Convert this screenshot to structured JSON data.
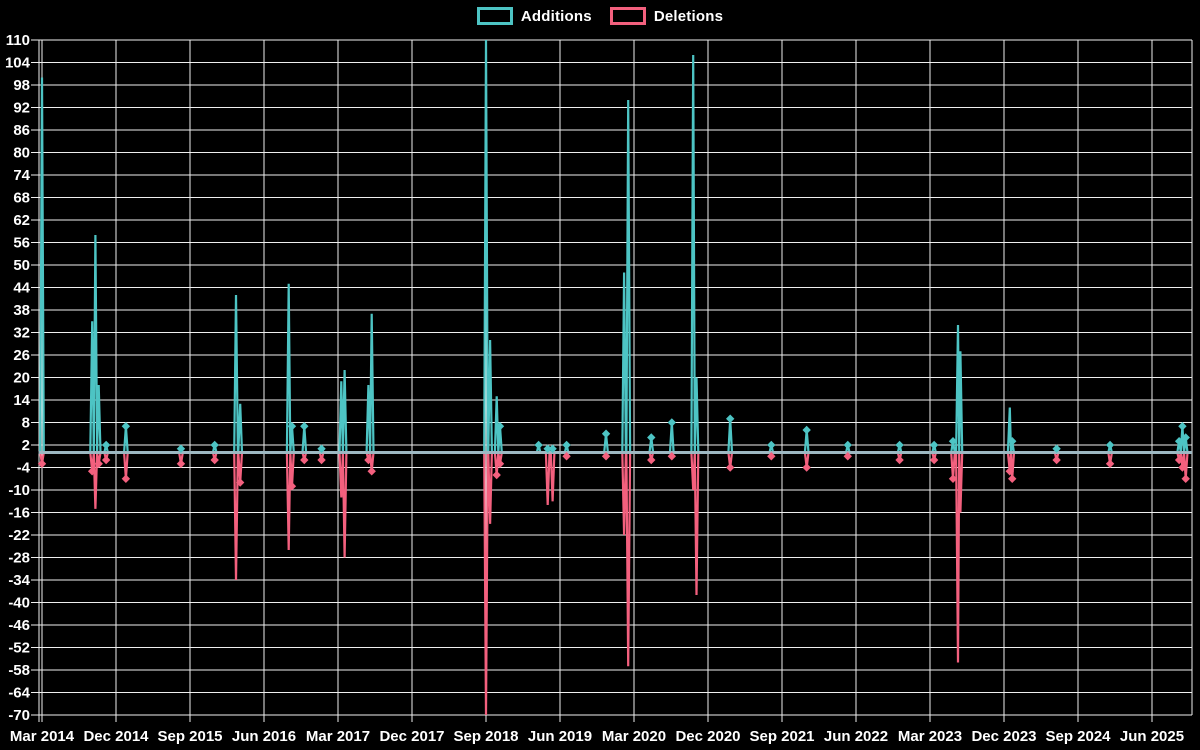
{
  "chart_data": {
    "type": "line",
    "title": "",
    "description": "Weekly additions and deletions spike chart (code frequency), black background",
    "legend": [
      {
        "label": "Additions",
        "color": "#4dc4c4"
      },
      {
        "label": "Deletions",
        "color": "#f3607e"
      }
    ],
    "legend_position": "top-center",
    "grid": true,
    "colors": {
      "background": "#000000",
      "gridline": "#efefef",
      "zero_baseline": "#9db8c2",
      "tick_text": "#ffffff",
      "additions": "#4dc4c4",
      "deletions": "#f3607e"
    },
    "y_axis": {
      "min": -70,
      "max": 110,
      "tick_step": 6,
      "tick_values": [
        110,
        104,
        98,
        92,
        86,
        80,
        74,
        68,
        62,
        56,
        50,
        44,
        38,
        32,
        26,
        20,
        14,
        8,
        2,
        -4,
        -10,
        -16,
        -22,
        -28,
        -34,
        -40,
        -46,
        -52,
        -58,
        -64,
        -70
      ]
    },
    "x_axis": {
      "tick_labels": [
        "Mar 2014",
        "Dec 2014",
        "Sep 2015",
        "Jun 2016",
        "Mar 2017",
        "Dec 2017",
        "Sep 2018",
        "Jun 2019",
        "Mar 2020",
        "Dec 2020",
        "Sep 2021",
        "Jun 2022",
        "Mar 2023",
        "Dec 2023",
        "Sep 2024",
        "Jun 2025"
      ],
      "tick_months": [
        0,
        9,
        18,
        27,
        36,
        45,
        54,
        63,
        72,
        81,
        90,
        99,
        108,
        117,
        126,
        135
      ],
      "months_visible": [
        -0.4,
        139.8
      ]
    },
    "baseline_value": 0,
    "events": [
      {
        "date": "2014-03",
        "m": 0.0,
        "additions": 100,
        "deletions": -3
      },
      {
        "date": "2014-09",
        "m": 6.1,
        "additions": 35,
        "deletions": -5
      },
      {
        "date": "2014-10",
        "m": 6.5,
        "additions": 58,
        "deletions": -15
      },
      {
        "date": "2014-10",
        "m": 6.9,
        "additions": 18,
        "deletions": -3
      },
      {
        "date": "2014-12",
        "m": 7.8,
        "additions": 2,
        "deletions": -2
      },
      {
        "date": "2015-01",
        "m": 10.2,
        "additions": 7,
        "deletions": -7
      },
      {
        "date": "2015-08",
        "m": 16.9,
        "additions": 1,
        "deletions": -3
      },
      {
        "date": "2015-12",
        "m": 21.0,
        "additions": 2,
        "deletions": -2
      },
      {
        "date": "2016-03",
        "m": 23.6,
        "additions": 42,
        "deletions": -34
      },
      {
        "date": "2016-03",
        "m": 24.1,
        "additions": 13,
        "deletions": -8
      },
      {
        "date": "2016-09",
        "m": 30.0,
        "additions": 45,
        "deletions": -26
      },
      {
        "date": "2016-09",
        "m": 30.4,
        "additions": 7,
        "deletions": -9
      },
      {
        "date": "2016-11",
        "m": 31.9,
        "additions": 7,
        "deletions": -2
      },
      {
        "date": "2017-01",
        "m": 34.0,
        "additions": 1,
        "deletions": -2
      },
      {
        "date": "2017-03",
        "m": 36.4,
        "additions": 19,
        "deletions": -12
      },
      {
        "date": "2017-03",
        "m": 36.8,
        "additions": 22,
        "deletions": -28
      },
      {
        "date": "2017-06",
        "m": 39.7,
        "additions": 18,
        "deletions": -2
      },
      {
        "date": "2017-07",
        "m": 40.1,
        "additions": 37,
        "deletions": -5
      },
      {
        "date": "2018-09",
        "m": 54.0,
        "additions": 110,
        "deletions": -70
      },
      {
        "date": "2018-10",
        "m": 54.5,
        "additions": 30,
        "deletions": -19
      },
      {
        "date": "2018-11",
        "m": 55.3,
        "additions": 15,
        "deletions": -6
      },
      {
        "date": "2018-11",
        "m": 55.7,
        "additions": 7,
        "deletions": -3
      },
      {
        "date": "2019-03",
        "m": 60.4,
        "additions": 2,
        "deletions": 0
      },
      {
        "date": "2019-04",
        "m": 61.5,
        "additions": 1,
        "deletions": -14
      },
      {
        "date": "2019-05",
        "m": 62.1,
        "additions": 1,
        "deletions": -13
      },
      {
        "date": "2019-07",
        "m": 63.8,
        "additions": 2,
        "deletions": -1
      },
      {
        "date": "2019-12",
        "m": 68.6,
        "additions": 5,
        "deletions": -1
      },
      {
        "date": "2020-02",
        "m": 70.8,
        "additions": 48,
        "deletions": -22
      },
      {
        "date": "2020-03",
        "m": 71.3,
        "additions": 94,
        "deletions": -57
      },
      {
        "date": "2020-05",
        "m": 74.1,
        "additions": 4,
        "deletions": -2
      },
      {
        "date": "2020-08",
        "m": 76.6,
        "additions": 8,
        "deletions": -1
      },
      {
        "date": "2020-10",
        "m": 79.2,
        "additions": 106,
        "deletions": -10
      },
      {
        "date": "2020-11",
        "m": 79.6,
        "additions": 20,
        "deletions": -38
      },
      {
        "date": "2021-02",
        "m": 83.7,
        "additions": 9,
        "deletions": -4
      },
      {
        "date": "2021-07",
        "m": 88.7,
        "additions": 2,
        "deletions": -1
      },
      {
        "date": "2021-12",
        "m": 93.0,
        "additions": 6,
        "deletions": -4
      },
      {
        "date": "2022-05",
        "m": 98.0,
        "additions": 2,
        "deletions": -1
      },
      {
        "date": "2022-11",
        "m": 104.3,
        "additions": 2,
        "deletions": -2
      },
      {
        "date": "2023-03",
        "m": 108.5,
        "additions": 2,
        "deletions": -2
      },
      {
        "date": "2023-05",
        "m": 110.8,
        "additions": 3,
        "deletions": -7
      },
      {
        "date": "2023-06",
        "m": 111.4,
        "additions": 34,
        "deletions": -56
      },
      {
        "date": "2023-06",
        "m": 111.7,
        "additions": 27,
        "deletions": -16
      },
      {
        "date": "2023-12",
        "m": 117.7,
        "additions": 12,
        "deletions": -5
      },
      {
        "date": "2023-12",
        "m": 118.0,
        "additions": 3,
        "deletions": -7
      },
      {
        "date": "2024-06",
        "m": 123.4,
        "additions": 1,
        "deletions": -2
      },
      {
        "date": "2024-12",
        "m": 129.9,
        "additions": 2,
        "deletions": -3
      },
      {
        "date": "2025-08",
        "m": 138.3,
        "additions": 3,
        "deletions": -2
      },
      {
        "date": "2025-09",
        "m": 138.7,
        "additions": 7,
        "deletions": -4
      },
      {
        "date": "2025-09",
        "m": 139.1,
        "additions": 4,
        "deletions": -7
      }
    ]
  }
}
